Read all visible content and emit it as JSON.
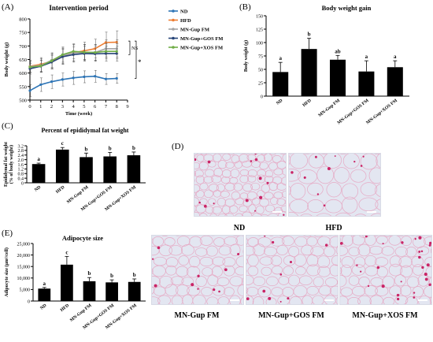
{
  "chart_data": [
    {
      "panel": "(A)",
      "type": "line",
      "title": "Intervention period",
      "xlabel": "Time (week)",
      "ylabel": "Body weight (g)",
      "xlim": [
        0,
        9
      ],
      "ylim": [
        500,
        800
      ],
      "xticks": [
        "0",
        "1",
        "2",
        "3",
        "4",
        "5",
        "6",
        "7",
        "8",
        "9"
      ],
      "yticks": [
        "500",
        "550",
        "600",
        "650",
        "700",
        "750",
        "800"
      ],
      "x": [
        0,
        1,
        2,
        3,
        4,
        5,
        6,
        7,
        8
      ],
      "series": [
        {
          "name": "ND",
          "color": "#2e75b6",
          "values": [
            535,
            557,
            568,
            576,
            582,
            586,
            588,
            578,
            580
          ],
          "errors": [
            22,
            25,
            25,
            24,
            24,
            22,
            22,
            20,
            18
          ]
        },
        {
          "name": "HFD",
          "color": "#ed7d31",
          "values": [
            625,
            632,
            643,
            662,
            675,
            682,
            690,
            713,
            714
          ],
          "errors": [
            22,
            25,
            28,
            30,
            30,
            32,
            35,
            38,
            42
          ]
        },
        {
          "name": "MN-Gup FM",
          "color": "#a5a5a5",
          "values": [
            624,
            628,
            647,
            664,
            674,
            676,
            676,
            690,
            690
          ],
          "errors": [
            22,
            25,
            28,
            28,
            30,
            30,
            30,
            32,
            32
          ]
        },
        {
          "name": "MN-Gup+GOS FM",
          "color": "#264478",
          "values": [
            616,
            625,
            640,
            660,
            668,
            672,
            671,
            672,
            672
          ],
          "errors": [
            20,
            22,
            25,
            28,
            28,
            28,
            28,
            28,
            28
          ]
        },
        {
          "name": "MN-Gup+XOS FM",
          "color": "#70ad47",
          "values": [
            622,
            626,
            645,
            668,
            680,
            677,
            676,
            680,
            680
          ],
          "errors": [
            20,
            22,
            25,
            28,
            28,
            28,
            28,
            28,
            28
          ]
        }
      ],
      "annotations": [
        "NS",
        "*"
      ],
      "legend": "right"
    },
    {
      "panel": "(B)",
      "type": "bar",
      "title": "Body weight gain",
      "xlabel": "",
      "ylabel": "Body weight (g)",
      "ylim": [
        0,
        150
      ],
      "yticks": [
        "0",
        "25",
        "50",
        "75",
        "100",
        "125",
        "150"
      ],
      "categories": [
        "ND",
        "HFD",
        "MN-Gup FM",
        "MN-Gup+GOS FM",
        "MN-Gup+XOS FM"
      ],
      "values": [
        45,
        88,
        68,
        46,
        54
      ],
      "errors": [
        18,
        20,
        8,
        20,
        12
      ],
      "letters": [
        "a",
        "b",
        "ab",
        "a",
        "a"
      ]
    },
    {
      "panel": "(C)",
      "type": "bar",
      "title": "Percent of epididymal fat weight",
      "xlabel": "",
      "ylabel": "Epididymal fat weight (% of body weight)",
      "ylim": [
        0,
        3.2
      ],
      "yticks": [
        "0",
        "0.4",
        "0.8",
        "1.2",
        "1.6",
        "2.0",
        "2.4",
        "2.8",
        "3.2"
      ],
      "categories": [
        "ND",
        "HFD",
        "MN-Gup FM",
        "MN-Gup+GOS FM",
        "MN-Gup+XOS FM"
      ],
      "values": [
        1.62,
        2.87,
        2.22,
        2.28,
        2.38
      ],
      "errors": [
        0.08,
        0.18,
        0.35,
        0.35,
        0.28
      ],
      "letters": [
        "a",
        "c",
        "b",
        "b",
        "b"
      ]
    },
    {
      "panel": "(E)",
      "type": "bar",
      "title": "Adipocyte size",
      "xlabel": "",
      "ylabel": "Adipocyte size (μm²/cell)",
      "ylim": [
        0,
        25000
      ],
      "yticks": [
        "0",
        "5,000",
        "10,000",
        "15,000",
        "20,000",
        "25,000"
      ],
      "categories": [
        "ND",
        "HFD",
        "MN-Gup FM",
        "MN-Gup+GOS FM",
        "MN-Gup+XOS FM"
      ],
      "values": [
        5400,
        15800,
        8600,
        8100,
        8300
      ],
      "errors": [
        500,
        3600,
        1600,
        1100,
        1300
      ],
      "letters": [
        "a",
        "c",
        "b",
        "b",
        "b"
      ]
    }
  ],
  "histology": {
    "panel": "(D)",
    "images": [
      {
        "label": "ND"
      },
      {
        "label": "HFD"
      },
      {
        "label": "MN-Gup FM"
      },
      {
        "label": "MN-Gup+GOS FM"
      },
      {
        "label": "MN-Gup+XOS FM"
      }
    ]
  }
}
